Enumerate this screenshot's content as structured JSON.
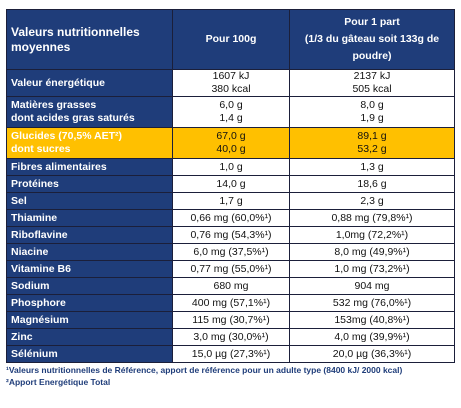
{
  "header": {
    "col0": "Valeurs nutritionnelles moyennes",
    "col1": "Pour 100g",
    "col2_lines": [
      "Pour 1 part",
      "(1/3 du gâteau soit 133g de",
      "poudre)"
    ]
  },
  "rows": [
    {
      "labels": [
        "Valeur énergétique"
      ],
      "v1": [
        "1607 kJ",
        "380 kcal"
      ],
      "v2": [
        "2137 kJ",
        "505 kcal"
      ]
    },
    {
      "labels": [
        "Matières grasses",
        "dont acides gras saturés"
      ],
      "v1": [
        "6,0 g",
        "1,4 g"
      ],
      "v2": [
        "8,0 g",
        "1,9 g"
      ]
    },
    {
      "labels": [
        "Glucides (70,5% AET²)",
        "dont sucres"
      ],
      "v1": [
        "67,0 g",
        "40,0 g"
      ],
      "v2": [
        "89,1 g",
        "53,2 g"
      ],
      "highlight": true
    },
    {
      "labels": [
        "Fibres alimentaires"
      ],
      "v1": [
        "1,0 g"
      ],
      "v2": [
        "1,3 g"
      ]
    },
    {
      "labels": [
        "Protéines"
      ],
      "v1": [
        "14,0 g"
      ],
      "v2": [
        "18,6 g"
      ]
    },
    {
      "labels": [
        "Sel"
      ],
      "v1": [
        "1,7 g"
      ],
      "v2": [
        "2,3 g"
      ]
    },
    {
      "labels": [
        "Thiamine"
      ],
      "v1": [
        "0,66 mg (60,0%¹)"
      ],
      "v2": [
        "0,88 mg (79,8%¹)"
      ]
    },
    {
      "labels": [
        "Riboflavine"
      ],
      "v1": [
        "0,76 mg (54,3%¹)"
      ],
      "v2": [
        "1,0mg (72,2%¹)"
      ]
    },
    {
      "labels": [
        "Niacine"
      ],
      "v1": [
        "6,0 mg (37,5%¹)"
      ],
      "v2": [
        "8,0 mg (49,9%¹)"
      ]
    },
    {
      "labels": [
        "Vitamine B6"
      ],
      "v1": [
        "0,77 mg (55,0%¹)"
      ],
      "v2": [
        "1,0 mg (73,2%¹)"
      ]
    },
    {
      "labels": [
        "Sodium"
      ],
      "v1": [
        "680  mg"
      ],
      "v2": [
        "904  mg"
      ]
    },
    {
      "labels": [
        "Phosphore"
      ],
      "v1": [
        "400 mg (57,1%¹)"
      ],
      "v2": [
        "532 mg (76,0%¹)"
      ]
    },
    {
      "labels": [
        "Magnésium"
      ],
      "v1": [
        "115 mg (30,7%¹)"
      ],
      "v2": [
        "153mg (40,8%¹)"
      ]
    },
    {
      "labels": [
        "Zinc"
      ],
      "v1": [
        "3,0 mg (30,0%¹)"
      ],
      "v2": [
        "4,0 mg (39,9%¹)"
      ]
    },
    {
      "labels": [
        "Sélénium"
      ],
      "v1": [
        "15,0 µg (27,3%¹)"
      ],
      "v2": [
        "20,0 µg (36,3%¹)"
      ]
    }
  ],
  "footnotes": [
    "¹Valeurs nutritionnelles de Référence, apport de référence pour un adulte type (8400 kJ/ 2000 kcal)",
    "²Apport Energétique Total"
  ]
}
